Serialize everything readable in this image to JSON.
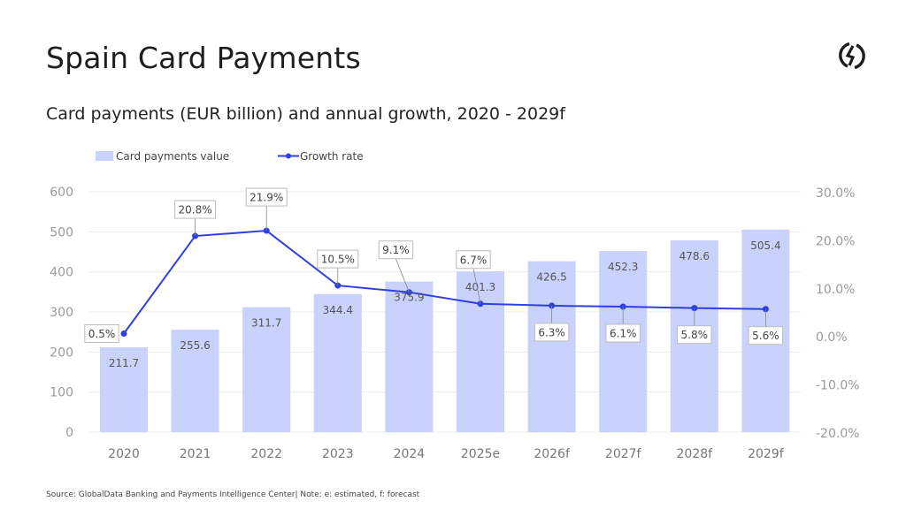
{
  "header": {
    "title": "Spain Card Payments",
    "subtitle": "Card payments (EUR billion) and annual growth, 2020 - 2029f",
    "logo": "globaldata-logo-icon"
  },
  "footer": {
    "source": "Source: GlobalData Banking and Payments Intelligence Center| Note: e: estimated, f: forecast"
  },
  "colors": {
    "bar": "#c8d2fb",
    "line": "#2f3fe0",
    "grid": "#ececec"
  },
  "chart_data": {
    "type": "bar+line",
    "title": "Card payments (EUR billion) and annual growth, 2020 - 2029f",
    "categories": [
      "2020",
      "2021",
      "2022",
      "2023",
      "2024",
      "2025e",
      "2026f",
      "2027f",
      "2028f",
      "2029f"
    ],
    "series": [
      {
        "name": "Card payments value",
        "type": "bar",
        "axis": "left",
        "values": [
          211.7,
          255.6,
          311.7,
          344.4,
          375.9,
          401.3,
          426.5,
          452.3,
          478.6,
          505.4
        ],
        "labels": [
          "211.7",
          "255.6",
          "311.7",
          "344.4",
          "375.9",
          "401.3",
          "426.5",
          "452.3",
          "478.6",
          "505.4"
        ]
      },
      {
        "name": "Growth rate",
        "type": "line",
        "axis": "right",
        "values": [
          0.5,
          20.8,
          21.9,
          10.5,
          9.1,
          6.7,
          6.3,
          6.1,
          5.8,
          5.6
        ],
        "labels": [
          "0.5%",
          "20.8%",
          "21.9%",
          "10.5%",
          "9.1%",
          "6.7%",
          "6.3%",
          "6.1%",
          "5.8%",
          "5.6%"
        ]
      }
    ],
    "y_left": {
      "range": [
        0,
        600
      ],
      "ticks": [
        "0",
        "100",
        "200",
        "300",
        "400",
        "500",
        "600"
      ]
    },
    "y_right": {
      "range": [
        -20,
        30
      ],
      "ticks": [
        "-20.0%",
        "-10.0%",
        "0.0%",
        "10.0%",
        "20.0%",
        "30.0%"
      ]
    },
    "grid": true,
    "legend": "top-left"
  }
}
